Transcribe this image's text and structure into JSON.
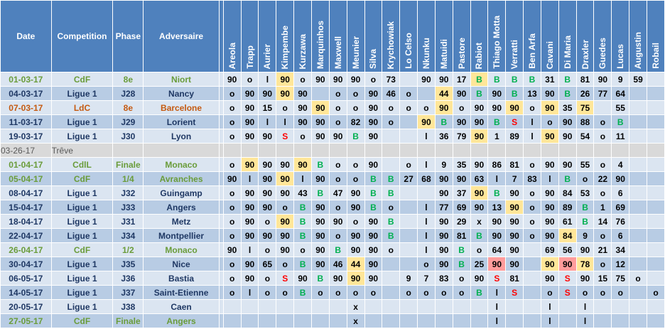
{
  "headers": {
    "date": "Date",
    "competition": "Competition",
    "phase": "Phase",
    "opponent": "Adversaire",
    "players": [
      "Areola",
      "Trapp",
      "Aurier",
      "Kimpembe",
      "Kurzawa",
      "Marquinhos",
      "Maxwell",
      "Meunier",
      "Silva",
      "Krychowiak",
      "Lo Celso",
      "Nkunku",
      "Matuidi",
      "Pastore",
      "Rabiot",
      "Thiago Motta",
      "Verratti",
      "Ben Arfa",
      "Cavani",
      "Di Maria",
      "Draxler",
      "Guedes",
      "Lucas",
      "Augustin",
      "Robail"
    ]
  },
  "rows": [
    {
      "date": "01-03-17",
      "comp": "CdF",
      "phase": "8e",
      "opp": "Niort",
      "ctype": "cdf",
      "cells": [
        [
          "90"
        ],
        [
          "o"
        ],
        [
          "l"
        ],
        [
          "90",
          "y"
        ],
        [
          "o"
        ],
        [
          "90"
        ],
        [
          "90"
        ],
        [
          "90"
        ],
        [
          "o"
        ],
        [
          "73"
        ],
        [
          ""
        ],
        [
          "90"
        ],
        [
          "90"
        ],
        [
          "17"
        ],
        [
          "B",
          "y"
        ],
        [
          "B"
        ],
        [
          "B"
        ],
        [
          "B"
        ],
        [
          "31"
        ],
        [
          "B"
        ],
        [
          "81"
        ],
        [
          "90"
        ],
        [
          "9"
        ],
        [
          "59"
        ],
        [
          ""
        ]
      ]
    },
    {
      "date": "04-03-17",
      "comp": "Ligue 1",
      "phase": "J28",
      "opp": "Nancy",
      "ctype": "lig",
      "cells": [
        [
          "o"
        ],
        [
          "90"
        ],
        [
          "90"
        ],
        [
          "90",
          "y"
        ],
        [
          "90"
        ],
        [
          ""
        ],
        [
          "o"
        ],
        [
          "o"
        ],
        [
          "90"
        ],
        [
          "46"
        ],
        [
          "o"
        ],
        [
          ""
        ],
        [
          "44",
          "y"
        ],
        [
          "90"
        ],
        [
          "B"
        ],
        [
          "90"
        ],
        [
          "B"
        ],
        [
          "13"
        ],
        [
          "90"
        ],
        [
          "B"
        ],
        [
          "26"
        ],
        [
          "77"
        ],
        [
          "64"
        ],
        [
          ""
        ],
        [
          ""
        ]
      ]
    },
    {
      "date": "07-03-17",
      "comp": "LdC",
      "phase": "8e",
      "opp": "Barcelone",
      "ctype": "ldc",
      "cells": [
        [
          "o"
        ],
        [
          "90"
        ],
        [
          "15"
        ],
        [
          "o"
        ],
        [
          "90"
        ],
        [
          "90",
          "y"
        ],
        [
          "o"
        ],
        [
          "o"
        ],
        [
          "90"
        ],
        [
          "o"
        ],
        [
          "o"
        ],
        [
          "o"
        ],
        [
          "90",
          "y"
        ],
        [
          "o"
        ],
        [
          "90"
        ],
        [
          "90"
        ],
        [
          "90",
          "y"
        ],
        [
          "o"
        ],
        [
          "90",
          "y"
        ],
        [
          "35"
        ],
        [
          "75",
          "y"
        ],
        [
          ""
        ],
        [
          "55"
        ],
        [
          ""
        ],
        [
          ""
        ]
      ]
    },
    {
      "date": "11-03-17",
      "comp": "Ligue 1",
      "phase": "J29",
      "opp": "Lorient",
      "ctype": "lig",
      "cells": [
        [
          "o"
        ],
        [
          "90"
        ],
        [
          "l"
        ],
        [
          "l"
        ],
        [
          "90"
        ],
        [
          "90"
        ],
        [
          "o"
        ],
        [
          "82"
        ],
        [
          "90"
        ],
        [
          "o"
        ],
        [
          ""
        ],
        [
          "90",
          "y"
        ],
        [
          "B"
        ],
        [
          "90"
        ],
        [
          "90"
        ],
        [
          "B"
        ],
        [
          "S"
        ],
        [
          "l"
        ],
        [
          "o"
        ],
        [
          "90"
        ],
        [
          "88"
        ],
        [
          "o"
        ],
        [
          "B"
        ],
        [
          ""
        ],
        [
          ""
        ]
      ]
    },
    {
      "date": "19-03-17",
      "comp": "Ligue 1",
      "phase": "J30",
      "opp": "Lyon",
      "ctype": "lig",
      "cells": [
        [
          "o"
        ],
        [
          "90"
        ],
        [
          "90"
        ],
        [
          "S"
        ],
        [
          "o"
        ],
        [
          "90"
        ],
        [
          "90"
        ],
        [
          "B"
        ],
        [
          "90"
        ],
        [
          ""
        ],
        [
          ""
        ],
        [
          "l"
        ],
        [
          "36"
        ],
        [
          "79"
        ],
        [
          "90",
          "y"
        ],
        [
          "1"
        ],
        [
          "89"
        ],
        [
          "l"
        ],
        [
          "90",
          "y"
        ],
        [
          "90"
        ],
        [
          "54"
        ],
        [
          "o"
        ],
        [
          "11"
        ],
        [
          ""
        ],
        [
          ""
        ]
      ]
    },
    {
      "date": "03-26-17",
      "comp": "Trêve",
      "phase": "",
      "opp": "",
      "ctype": "tre",
      "cells": []
    },
    {
      "date": "01-04-17",
      "comp": "CdlL",
      "phase": "Finale",
      "opp": "Monaco",
      "ctype": "cdf",
      "cells": [
        [
          "o"
        ],
        [
          "90",
          "y"
        ],
        [
          "90"
        ],
        [
          "90"
        ],
        [
          "90",
          "y"
        ],
        [
          "B"
        ],
        [
          "o"
        ],
        [
          "o"
        ],
        [
          "90"
        ],
        [
          ""
        ],
        [
          "o"
        ],
        [
          "l"
        ],
        [
          "9"
        ],
        [
          "35"
        ],
        [
          "90"
        ],
        [
          "86"
        ],
        [
          "81"
        ],
        [
          "o"
        ],
        [
          "90"
        ],
        [
          "90"
        ],
        [
          "55"
        ],
        [
          "o"
        ],
        [
          "4"
        ],
        [
          ""
        ],
        [
          ""
        ]
      ]
    },
    {
      "date": "05-04-17",
      "comp": "CdF",
      "phase": "1/4",
      "opp": "Avranches",
      "ctype": "cdf",
      "cells": [
        [
          "90"
        ],
        [
          "l"
        ],
        [
          "90"
        ],
        [
          "90",
          "y"
        ],
        [
          "l"
        ],
        [
          "90"
        ],
        [
          "o"
        ],
        [
          "o"
        ],
        [
          "B"
        ],
        [
          "B"
        ],
        [
          "27"
        ],
        [
          "68"
        ],
        [
          "90"
        ],
        [
          "90"
        ],
        [
          "63"
        ],
        [
          "l"
        ],
        [
          "7"
        ],
        [
          "83"
        ],
        [
          "l"
        ],
        [
          "B"
        ],
        [
          "o"
        ],
        [
          "22"
        ],
        [
          "90"
        ],
        [
          ""
        ],
        [
          ""
        ]
      ]
    },
    {
      "date": "08-04-17",
      "comp": "Ligue 1",
      "phase": "J32",
      "opp": "Guingamp",
      "ctype": "lig",
      "cells": [
        [
          "o"
        ],
        [
          "90"
        ],
        [
          "90"
        ],
        [
          "90"
        ],
        [
          "43"
        ],
        [
          "B"
        ],
        [
          "47"
        ],
        [
          "90"
        ],
        [
          "B"
        ],
        [
          "B"
        ],
        [
          ""
        ],
        [
          ""
        ],
        [
          "90"
        ],
        [
          "37"
        ],
        [
          "90",
          "y"
        ],
        [
          "B"
        ],
        [
          "90"
        ],
        [
          "o"
        ],
        [
          "90"
        ],
        [
          "84"
        ],
        [
          "53"
        ],
        [
          "o"
        ],
        [
          "6"
        ],
        [
          ""
        ],
        [
          ""
        ]
      ]
    },
    {
      "date": "15-04-17",
      "comp": "Ligue 1",
      "phase": "J33",
      "opp": "Angers",
      "ctype": "lig",
      "cells": [
        [
          "o"
        ],
        [
          "90"
        ],
        [
          "90"
        ],
        [
          "o"
        ],
        [
          "B"
        ],
        [
          "90"
        ],
        [
          "o"
        ],
        [
          "90"
        ],
        [
          "B"
        ],
        [
          "o"
        ],
        [
          ""
        ],
        [
          "l"
        ],
        [
          "77"
        ],
        [
          "69"
        ],
        [
          "90"
        ],
        [
          "13"
        ],
        [
          "90",
          "y"
        ],
        [
          "o"
        ],
        [
          "90"
        ],
        [
          "89"
        ],
        [
          "B"
        ],
        [
          "1"
        ],
        [
          "69"
        ],
        [
          ""
        ],
        [
          ""
        ]
      ]
    },
    {
      "date": "18-04-17",
      "comp": "Ligue 1",
      "phase": "J31",
      "opp": "Metz",
      "ctype": "lig",
      "cells": [
        [
          "o"
        ],
        [
          "90"
        ],
        [
          "o"
        ],
        [
          "90",
          "y"
        ],
        [
          "B"
        ],
        [
          "90"
        ],
        [
          "90"
        ],
        [
          "o"
        ],
        [
          "90"
        ],
        [
          "B"
        ],
        [
          ""
        ],
        [
          "l"
        ],
        [
          "90"
        ],
        [
          "29"
        ],
        [
          "x"
        ],
        [
          "90"
        ],
        [
          "90"
        ],
        [
          "o"
        ],
        [
          "90"
        ],
        [
          "61"
        ],
        [
          "B"
        ],
        [
          "14"
        ],
        [
          "76"
        ],
        [
          ""
        ],
        [
          ""
        ]
      ]
    },
    {
      "date": "22-04-17",
      "comp": "Ligue 1",
      "phase": "J34",
      "opp": "Montpellier",
      "ctype": "lig",
      "cells": [
        [
          "o"
        ],
        [
          "90"
        ],
        [
          "90"
        ],
        [
          "90"
        ],
        [
          "B"
        ],
        [
          "90"
        ],
        [
          "o"
        ],
        [
          "90"
        ],
        [
          "90"
        ],
        [
          "B"
        ],
        [
          ""
        ],
        [
          "l"
        ],
        [
          "90"
        ],
        [
          "81"
        ],
        [
          "B"
        ],
        [
          "90"
        ],
        [
          "90"
        ],
        [
          "o"
        ],
        [
          "90"
        ],
        [
          "84",
          "y"
        ],
        [
          "9"
        ],
        [
          "o"
        ],
        [
          "6"
        ],
        [
          ""
        ],
        [
          ""
        ]
      ]
    },
    {
      "date": "26-04-17",
      "comp": "CdF",
      "phase": "1/2",
      "opp": "Monaco",
      "ctype": "cdf",
      "cells": [
        [
          "90"
        ],
        [
          "l"
        ],
        [
          "o"
        ],
        [
          "90"
        ],
        [
          "o"
        ],
        [
          "90"
        ],
        [
          "B"
        ],
        [
          "90"
        ],
        [
          "90"
        ],
        [
          "o"
        ],
        [
          ""
        ],
        [
          "l"
        ],
        [
          "90"
        ],
        [
          "B"
        ],
        [
          "o"
        ],
        [
          "64"
        ],
        [
          "90"
        ],
        [
          ""
        ],
        [
          "69"
        ],
        [
          "56"
        ],
        [
          "90"
        ],
        [
          "21"
        ],
        [
          "34"
        ],
        [
          ""
        ],
        [
          ""
        ]
      ]
    },
    {
      "date": "30-04-17",
      "comp": "Ligue 1",
      "phase": "J35",
      "opp": "Nice",
      "ctype": "lig",
      "cells": [
        [
          "o"
        ],
        [
          "90"
        ],
        [
          "65"
        ],
        [
          "o"
        ],
        [
          "B"
        ],
        [
          "90"
        ],
        [
          "46"
        ],
        [
          "44",
          "y"
        ],
        [
          "90"
        ],
        [
          ""
        ],
        [
          ""
        ],
        [
          "o"
        ],
        [
          "90"
        ],
        [
          "B"
        ],
        [
          "25"
        ],
        [
          "90",
          "r"
        ],
        [
          "90"
        ],
        [
          ""
        ],
        [
          "90",
          "y"
        ],
        [
          "90",
          "r"
        ],
        [
          "78",
          "y"
        ],
        [
          "o"
        ],
        [
          "12"
        ],
        [
          ""
        ],
        [
          ""
        ]
      ]
    },
    {
      "date": "06-05-17",
      "comp": "Ligue 1",
      "phase": "J36",
      "opp": "Bastia",
      "ctype": "lig",
      "cells": [
        [
          "o"
        ],
        [
          "90"
        ],
        [
          "o"
        ],
        [
          "S"
        ],
        [
          "90"
        ],
        [
          "B"
        ],
        [
          "90"
        ],
        [
          "90",
          "y"
        ],
        [
          "90"
        ],
        [
          ""
        ],
        [
          "9"
        ],
        [
          "7"
        ],
        [
          "83"
        ],
        [
          "o"
        ],
        [
          "90"
        ],
        [
          "S"
        ],
        [
          "81"
        ],
        [
          ""
        ],
        [
          "90"
        ],
        [
          "S"
        ],
        [
          "90"
        ],
        [
          "15"
        ],
        [
          "75"
        ],
        [
          "o"
        ],
        [
          ""
        ]
      ]
    },
    {
      "date": "14-05-17",
      "comp": "Ligue 1",
      "phase": "J37",
      "opp": "Saint-Etienne",
      "ctype": "lig",
      "cells": [
        [
          "o"
        ],
        [
          "l"
        ],
        [
          "o"
        ],
        [
          "o"
        ],
        [
          "B"
        ],
        [
          "o"
        ],
        [
          "o"
        ],
        [
          "o"
        ],
        [
          "o"
        ],
        [
          ""
        ],
        [
          "o"
        ],
        [
          "o"
        ],
        [
          "o"
        ],
        [
          "o"
        ],
        [
          "B"
        ],
        [
          "l"
        ],
        [
          "S"
        ],
        [
          ""
        ],
        [
          "o"
        ],
        [
          "S"
        ],
        [
          "o"
        ],
        [
          "o"
        ],
        [
          "o"
        ],
        [
          ""
        ],
        [
          "o"
        ]
      ]
    },
    {
      "date": "20-05-17",
      "comp": "Ligue 1",
      "phase": "J38",
      "opp": "Caen",
      "ctype": "lig",
      "cells": [
        [
          ""
        ],
        [
          ""
        ],
        [
          ""
        ],
        [
          ""
        ],
        [
          ""
        ],
        [
          ""
        ],
        [
          ""
        ],
        [
          "x"
        ],
        [
          ""
        ],
        [
          ""
        ],
        [
          ""
        ],
        [
          ""
        ],
        [
          ""
        ],
        [
          ""
        ],
        [
          ""
        ],
        [
          "l"
        ],
        [
          ""
        ],
        [
          ""
        ],
        [
          "l"
        ],
        [
          ""
        ],
        [
          "l"
        ],
        [
          ""
        ],
        [
          ""
        ],
        [
          ""
        ],
        [
          ""
        ]
      ]
    },
    {
      "date": "27-05-17",
      "comp": "CdF",
      "phase": "Finale",
      "opp": "Angers",
      "ctype": "cdf",
      "cells": [
        [
          ""
        ],
        [
          ""
        ],
        [
          ""
        ],
        [
          ""
        ],
        [
          ""
        ],
        [
          ""
        ],
        [
          ""
        ],
        [
          "x"
        ],
        [
          ""
        ],
        [
          ""
        ],
        [
          ""
        ],
        [
          ""
        ],
        [
          ""
        ],
        [
          ""
        ],
        [
          ""
        ],
        [
          "l"
        ],
        [
          ""
        ],
        [
          ""
        ],
        [
          "l"
        ],
        [
          ""
        ],
        [
          "l"
        ],
        [
          ""
        ],
        [
          ""
        ],
        [
          ""
        ],
        [
          ""
        ]
      ]
    }
  ],
  "colors": {
    "header": "#4f81bd",
    "row_light": "#dbe5f1",
    "row_dark": "#b8cce4",
    "highlight_yellow": "#ffe699",
    "highlight_red": "#ff9c9c",
    "bench_green": "#00b050",
    "suspended_red": "#ff0000"
  }
}
